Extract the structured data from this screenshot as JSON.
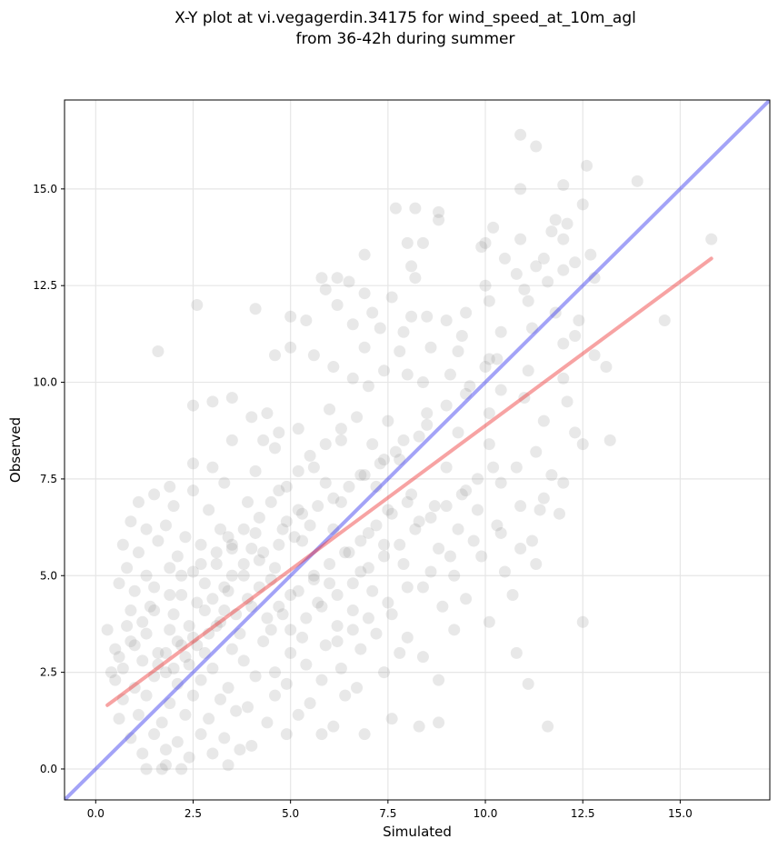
{
  "chart_data": {
    "type": "scatter",
    "title": "X-Y plot at vi.vegagerdin.34175 for wind_speed_at_10m_agl",
    "subtitle": "from 36-42h during summer",
    "xlabel": "Simulated",
    "ylabel": "Observed",
    "xlim": [
      -0.8,
      17.3
    ],
    "ylim": [
      -0.8,
      17.3
    ],
    "xticks": [
      "0.0",
      "2.5",
      "5.0",
      "7.5",
      "10.0",
      "12.5",
      "15.0"
    ],
    "yticks": [
      "0.0",
      "2.5",
      "5.0",
      "7.5",
      "10.0",
      "12.5",
      "15.0"
    ],
    "grid": true,
    "point_color": "#808080",
    "point_opacity": 0.18,
    "identity_line": {
      "x": [
        -0.8,
        17.3
      ],
      "y": [
        -0.8,
        17.3
      ],
      "color": "#3333ee"
    },
    "regression_line": {
      "x": [
        0.3,
        15.8
      ],
      "y": [
        1.65,
        13.2
      ],
      "color": "#ee3333"
    },
    "points": [
      [
        10.9,
        16.4
      ],
      [
        11.3,
        16.1
      ],
      [
        12.6,
        15.6
      ],
      [
        13.9,
        15.2
      ],
      [
        12.0,
        15.1
      ],
      [
        10.9,
        15.0
      ],
      [
        12.5,
        14.6
      ],
      [
        7.7,
        14.5
      ],
      [
        8.2,
        14.5
      ],
      [
        8.8,
        14.4
      ],
      [
        8.8,
        14.2
      ],
      [
        11.8,
        14.2
      ],
      [
        12.1,
        14.1
      ],
      [
        10.2,
        14.0
      ],
      [
        11.7,
        13.9
      ],
      [
        12.0,
        13.7
      ],
      [
        15.8,
        13.7
      ],
      [
        8.0,
        13.6
      ],
      [
        8.4,
        13.6
      ],
      [
        10.0,
        13.6
      ],
      [
        10.9,
        13.7
      ],
      [
        9.9,
        13.5
      ],
      [
        12.7,
        13.3
      ],
      [
        6.9,
        13.3
      ],
      [
        10.5,
        13.2
      ],
      [
        11.5,
        13.2
      ],
      [
        12.3,
        13.1
      ],
      [
        11.3,
        13.0
      ],
      [
        8.1,
        13.0
      ],
      [
        12.0,
        12.9
      ],
      [
        10.8,
        12.8
      ],
      [
        11.6,
        12.6
      ],
      [
        5.8,
        12.7
      ],
      [
        6.2,
        12.7
      ],
      [
        6.5,
        12.6
      ],
      [
        8.2,
        12.7
      ],
      [
        12.8,
        12.7
      ],
      [
        10.0,
        12.5
      ],
      [
        11.0,
        12.4
      ],
      [
        6.9,
        12.3
      ],
      [
        7.6,
        12.2
      ],
      [
        5.9,
        12.4
      ],
      [
        10.1,
        12.1
      ],
      [
        11.1,
        12.1
      ],
      [
        6.2,
        12.0
      ],
      [
        2.6,
        12.0
      ],
      [
        4.1,
        11.9
      ],
      [
        7.1,
        11.8
      ],
      [
        8.1,
        11.7
      ],
      [
        8.5,
        11.7
      ],
      [
        9.0,
        11.6
      ],
      [
        9.5,
        11.8
      ],
      [
        11.8,
        11.8
      ],
      [
        12.4,
        11.6
      ],
      [
        14.6,
        11.6
      ],
      [
        5.0,
        11.7
      ],
      [
        5.4,
        11.6
      ],
      [
        6.6,
        11.5
      ],
      [
        7.3,
        11.4
      ],
      [
        7.9,
        11.3
      ],
      [
        9.4,
        11.2
      ],
      [
        10.4,
        11.3
      ],
      [
        11.2,
        11.4
      ],
      [
        12.3,
        11.2
      ],
      [
        1.6,
        10.8
      ],
      [
        4.6,
        10.7
      ],
      [
        5.6,
        10.7
      ],
      [
        6.9,
        10.9
      ],
      [
        7.8,
        10.8
      ],
      [
        8.6,
        10.9
      ],
      [
        9.3,
        10.8
      ],
      [
        10.1,
        10.6
      ],
      [
        12.0,
        11.0
      ],
      [
        12.8,
        10.7
      ],
      [
        13.1,
        10.4
      ],
      [
        5.0,
        10.9
      ],
      [
        6.1,
        10.4
      ],
      [
        7.4,
        10.3
      ],
      [
        8.0,
        10.2
      ],
      [
        9.1,
        10.2
      ],
      [
        10.0,
        10.4
      ],
      [
        11.1,
        10.3
      ],
      [
        12.0,
        10.1
      ],
      [
        6.6,
        10.1
      ],
      [
        7.0,
        9.9
      ],
      [
        8.4,
        10.0
      ],
      [
        9.5,
        9.7
      ],
      [
        10.4,
        9.8
      ],
      [
        11.0,
        9.6
      ],
      [
        12.1,
        9.5
      ],
      [
        3.0,
        9.5
      ],
      [
        2.5,
        9.4
      ],
      [
        3.5,
        9.6
      ],
      [
        4.4,
        9.2
      ],
      [
        4.0,
        9.1
      ],
      [
        6.0,
        9.3
      ],
      [
        7.5,
        9.0
      ],
      [
        8.5,
        9.2
      ],
      [
        10.1,
        9.2
      ],
      [
        11.5,
        9.0
      ],
      [
        12.3,
        8.7
      ],
      [
        13.2,
        8.5
      ],
      [
        4.7,
        8.7
      ],
      [
        4.6,
        8.3
      ],
      [
        3.5,
        8.5
      ],
      [
        4.3,
        8.5
      ],
      [
        5.2,
        8.8
      ],
      [
        6.3,
        8.5
      ],
      [
        7.1,
        8.4
      ],
      [
        8.3,
        8.6
      ],
      [
        9.3,
        8.7
      ],
      [
        10.1,
        8.4
      ],
      [
        11.3,
        8.2
      ],
      [
        12.5,
        8.4
      ],
      [
        2.5,
        7.9
      ],
      [
        3.0,
        7.8
      ],
      [
        4.1,
        7.7
      ],
      [
        5.6,
        7.8
      ],
      [
        6.8,
        7.6
      ],
      [
        7.8,
        8.0
      ],
      [
        9.0,
        7.8
      ],
      [
        10.8,
        7.8
      ],
      [
        11.7,
        7.6
      ],
      [
        12.0,
        7.4
      ],
      [
        1.9,
        7.3
      ],
      [
        2.5,
        7.2
      ],
      [
        3.3,
        7.4
      ],
      [
        4.7,
        7.2
      ],
      [
        5.9,
        7.4
      ],
      [
        7.2,
        7.3
      ],
      [
        8.1,
        7.1
      ],
      [
        9.5,
        7.2
      ],
      [
        10.4,
        7.4
      ],
      [
        11.5,
        7.0
      ],
      [
        1.1,
        6.9
      ],
      [
        1.5,
        7.1
      ],
      [
        2.0,
        6.8
      ],
      [
        2.9,
        6.7
      ],
      [
        3.9,
        6.9
      ],
      [
        5.2,
        6.7
      ],
      [
        6.3,
        6.9
      ],
      [
        7.5,
        6.7
      ],
      [
        8.7,
        6.8
      ],
      [
        9.8,
        6.7
      ],
      [
        11.4,
        6.7
      ],
      [
        11.9,
        6.6
      ],
      [
        0.9,
        6.4
      ],
      [
        1.3,
        6.2
      ],
      [
        1.8,
        6.3
      ],
      [
        2.3,
        6.0
      ],
      [
        3.2,
        6.2
      ],
      [
        4.1,
        6.1
      ],
      [
        4.9,
        6.4
      ],
      [
        6.1,
        6.2
      ],
      [
        7.0,
        6.1
      ],
      [
        8.3,
        6.4
      ],
      [
        9.3,
        6.2
      ],
      [
        10.4,
        6.1
      ],
      [
        11.2,
        5.9
      ],
      [
        0.7,
        5.8
      ],
      [
        1.1,
        5.6
      ],
      [
        1.6,
        5.9
      ],
      [
        2.1,
        5.5
      ],
      [
        2.7,
        5.8
      ],
      [
        3.5,
        5.7
      ],
      [
        4.3,
        5.6
      ],
      [
        5.3,
        5.9
      ],
      [
        6.5,
        5.6
      ],
      [
        7.4,
        5.8
      ],
      [
        8.8,
        5.7
      ],
      [
        9.9,
        5.5
      ],
      [
        10.9,
        5.7
      ],
      [
        0.8,
        5.2
      ],
      [
        1.3,
        5.0
      ],
      [
        1.9,
        5.2
      ],
      [
        2.5,
        5.1
      ],
      [
        3.1,
        5.3
      ],
      [
        3.8,
        5.0
      ],
      [
        4.6,
        5.2
      ],
      [
        5.6,
        5.0
      ],
      [
        6.8,
        5.1
      ],
      [
        7.9,
        5.3
      ],
      [
        9.2,
        5.0
      ],
      [
        10.5,
        5.1
      ],
      [
        11.3,
        5.3
      ],
      [
        0.6,
        4.8
      ],
      [
        1.0,
        4.6
      ],
      [
        1.5,
        4.7
      ],
      [
        2.2,
        4.5
      ],
      [
        2.8,
        4.8
      ],
      [
        3.4,
        4.6
      ],
      [
        4.2,
        4.7
      ],
      [
        5.0,
        4.5
      ],
      [
        6.0,
        4.8
      ],
      [
        7.1,
        4.6
      ],
      [
        8.4,
        4.7
      ],
      [
        9.5,
        4.4
      ],
      [
        10.7,
        4.5
      ],
      [
        0.9,
        4.1
      ],
      [
        1.4,
        4.2
      ],
      [
        2.0,
        4.0
      ],
      [
        2.6,
        4.3
      ],
      [
        3.3,
        4.1
      ],
      [
        4.0,
        4.2
      ],
      [
        4.8,
        4.0
      ],
      [
        5.7,
        4.3
      ],
      [
        6.6,
        4.1
      ],
      [
        7.6,
        4.0
      ],
      [
        8.9,
        4.2
      ],
      [
        10.1,
        3.8
      ],
      [
        12.5,
        3.8
      ],
      [
        0.3,
        3.6
      ],
      [
        0.8,
        3.7
      ],
      [
        1.3,
        3.5
      ],
      [
        1.9,
        3.6
      ],
      [
        2.5,
        3.4
      ],
      [
        3.1,
        3.7
      ],
      [
        3.7,
        3.5
      ],
      [
        4.5,
        3.6
      ],
      [
        5.3,
        3.4
      ],
      [
        6.2,
        3.7
      ],
      [
        7.2,
        3.5
      ],
      [
        8.0,
        3.4
      ],
      [
        9.2,
        3.6
      ],
      [
        0.5,
        3.1
      ],
      [
        1.0,
        3.2
      ],
      [
        1.6,
        3.0
      ],
      [
        2.2,
        3.2
      ],
      [
        2.8,
        3.0
      ],
      [
        3.5,
        3.1
      ],
      [
        4.3,
        3.3
      ],
      [
        5.0,
        3.0
      ],
      [
        5.9,
        3.2
      ],
      [
        6.8,
        3.1
      ],
      [
        7.8,
        3.0
      ],
      [
        10.8,
        3.0
      ],
      [
        0.7,
        2.6
      ],
      [
        1.2,
        2.8
      ],
      [
        1.8,
        2.5
      ],
      [
        2.4,
        2.7
      ],
      [
        3.0,
        2.6
      ],
      [
        3.8,
        2.8
      ],
      [
        4.6,
        2.5
      ],
      [
        5.4,
        2.7
      ],
      [
        6.3,
        2.6
      ],
      [
        7.4,
        2.5
      ],
      [
        8.4,
        2.9
      ],
      [
        0.5,
        2.3
      ],
      [
        1.0,
        2.1
      ],
      [
        1.5,
        2.4
      ],
      [
        2.1,
        2.2
      ],
      [
        2.7,
        2.3
      ],
      [
        3.4,
        2.1
      ],
      [
        4.1,
        2.4
      ],
      [
        4.9,
        2.2
      ],
      [
        5.8,
        2.3
      ],
      [
        6.7,
        2.1
      ],
      [
        8.8,
        2.3
      ],
      [
        11.1,
        2.2
      ],
      [
        0.7,
        1.8
      ],
      [
        1.3,
        1.9
      ],
      [
        1.9,
        1.7
      ],
      [
        2.5,
        1.9
      ],
      [
        3.2,
        1.8
      ],
      [
        3.9,
        1.6
      ],
      [
        4.6,
        1.9
      ],
      [
        5.5,
        1.7
      ],
      [
        6.4,
        1.9
      ],
      [
        0.6,
        1.3
      ],
      [
        1.1,
        1.4
      ],
      [
        1.7,
        1.2
      ],
      [
        2.3,
        1.4
      ],
      [
        2.9,
        1.3
      ],
      [
        3.6,
        1.5
      ],
      [
        4.4,
        1.2
      ],
      [
        5.2,
        1.4
      ],
      [
        6.1,
        1.1
      ],
      [
        7.6,
        1.3
      ],
      [
        8.3,
        1.1
      ],
      [
        8.8,
        1.2
      ],
      [
        11.6,
        1.1
      ],
      [
        0.9,
        0.8
      ],
      [
        1.5,
        0.9
      ],
      [
        2.1,
        0.7
      ],
      [
        2.7,
        0.9
      ],
      [
        3.3,
        0.8
      ],
      [
        4.0,
        0.6
      ],
      [
        4.9,
        0.9
      ],
      [
        5.8,
        0.9
      ],
      [
        6.9,
        0.9
      ],
      [
        1.2,
        0.4
      ],
      [
        1.8,
        0.5
      ],
      [
        2.4,
        0.3
      ],
      [
        3.0,
        0.4
      ],
      [
        3.7,
        0.5
      ],
      [
        1.3,
        0.0
      ],
      [
        1.8,
        0.1
      ],
      [
        2.2,
        0.0
      ],
      [
        3.4,
        0.1
      ],
      [
        1.7,
        0.0
      ],
      [
        4.2,
        5.4
      ],
      [
        4.7,
        5.8
      ],
      [
        5.1,
        6.0
      ],
      [
        5.5,
        6.3
      ],
      [
        4.5,
        4.9
      ],
      [
        3.9,
        4.4
      ],
      [
        3.6,
        4.0
      ],
      [
        3.2,
        3.8
      ],
      [
        2.9,
        3.5
      ],
      [
        2.6,
        3.2
      ],
      [
        2.3,
        2.9
      ],
      [
        2.0,
        2.6
      ],
      [
        4.8,
        6.2
      ],
      [
        5.3,
        6.6
      ],
      [
        5.7,
        6.8
      ],
      [
        6.1,
        7.0
      ],
      [
        6.5,
        7.3
      ],
      [
        6.9,
        7.6
      ],
      [
        7.3,
        7.9
      ],
      [
        7.7,
        8.2
      ],
      [
        4.4,
        3.9
      ],
      [
        4.7,
        4.2
      ],
      [
        5.2,
        4.6
      ],
      [
        5.6,
        4.9
      ],
      [
        6.0,
        5.3
      ],
      [
        6.4,
        5.6
      ],
      [
        6.8,
        5.9
      ],
      [
        7.2,
        6.3
      ],
      [
        7.6,
        6.6
      ],
      [
        8.0,
        6.9
      ],
      [
        2.8,
        4.1
      ],
      [
        3.0,
        4.4
      ],
      [
        3.3,
        4.7
      ],
      [
        3.5,
        5.0
      ],
      [
        3.8,
        5.3
      ],
      [
        4.0,
        5.7
      ],
      [
        2.4,
        3.7
      ],
      [
        2.1,
        3.3
      ],
      [
        1.8,
        3.0
      ],
      [
        1.6,
        2.7
      ],
      [
        5.0,
        3.6
      ],
      [
        5.4,
        3.9
      ],
      [
        5.8,
        4.2
      ],
      [
        6.2,
        4.5
      ],
      [
        6.6,
        4.8
      ],
      [
        7.0,
        5.2
      ],
      [
        7.4,
        5.5
      ],
      [
        7.8,
        5.8
      ],
      [
        8.2,
        6.2
      ],
      [
        8.6,
        6.5
      ],
      [
        9.0,
        6.8
      ],
      [
        9.4,
        7.1
      ],
      [
        9.8,
        7.5
      ],
      [
        10.2,
        7.8
      ],
      [
        8.5,
        8.9
      ],
      [
        9.0,
        9.4
      ],
      [
        9.6,
        9.9
      ],
      [
        10.3,
        10.6
      ],
      [
        7.9,
        8.5
      ],
      [
        7.4,
        8.0
      ],
      [
        3.1,
        5.6
      ],
      [
        3.4,
        6.0
      ],
      [
        2.7,
        5.3
      ],
      [
        2.2,
        5.0
      ],
      [
        1.9,
        4.5
      ],
      [
        1.5,
        4.1
      ],
      [
        1.2,
        3.8
      ],
      [
        0.9,
        3.3
      ],
      [
        0.6,
        2.9
      ],
      [
        0.4,
        2.5
      ],
      [
        5.5,
        8.1
      ],
      [
        5.9,
        8.4
      ],
      [
        6.3,
        8.8
      ],
      [
        6.7,
        9.1
      ],
      [
        5.2,
        7.7
      ],
      [
        4.9,
        7.3
      ],
      [
        4.5,
        6.9
      ],
      [
        4.2,
        6.5
      ],
      [
        3.8,
        6.2
      ],
      [
        3.5,
        5.8
      ],
      [
        6.2,
        3.3
      ],
      [
        6.6,
        3.6
      ],
      [
        7.0,
        3.9
      ],
      [
        7.5,
        4.3
      ],
      [
        8.0,
        4.7
      ],
      [
        8.6,
        5.1
      ],
      [
        9.1,
        5.5
      ],
      [
        9.7,
        5.9
      ],
      [
        10.3,
        6.3
      ],
      [
        10.9,
        6.8
      ]
    ]
  }
}
